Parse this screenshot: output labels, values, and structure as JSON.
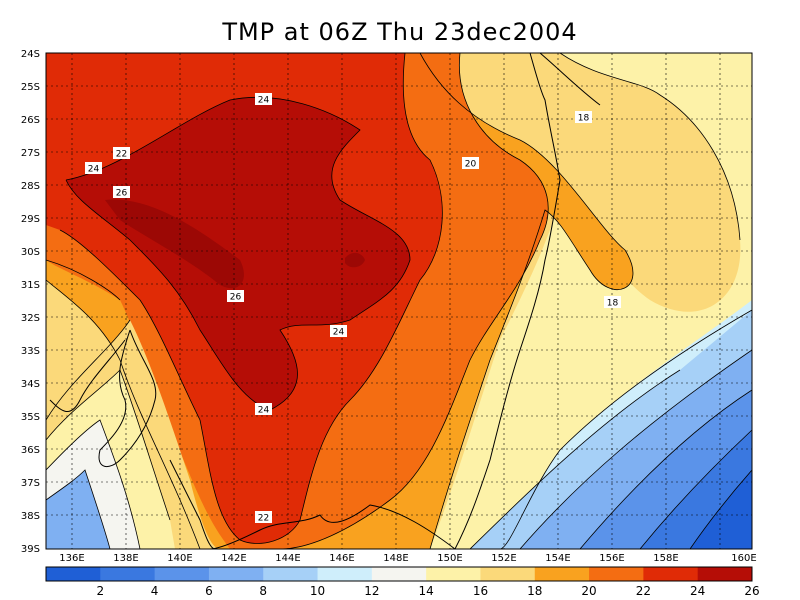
{
  "title": "TMP at 06Z Thu 23dec2004",
  "y_ticks": [
    "24S",
    "25S",
    "26S",
    "27S",
    "28S",
    "29S",
    "30S",
    "31S",
    "32S",
    "33S",
    "34S",
    "35S",
    "36S",
    "37S",
    "38S",
    "39S"
  ],
  "x_ticks": [
    "136E",
    "138E",
    "140E",
    "142E",
    "144E",
    "146E",
    "148E",
    "150E",
    "152E",
    "154E",
    "156E",
    "158E",
    "160E"
  ],
  "colorbar": {
    "labels": [
      "2",
      "4",
      "6",
      "8",
      "10",
      "12",
      "14",
      "16",
      "18",
      "20",
      "22",
      "24",
      "26"
    ],
    "colors": [
      "#1f5fd6",
      "#3a78e0",
      "#5b93ea",
      "#7fb0f2",
      "#a6d0f7",
      "#cfeefb",
      "#f5f5f0",
      "#fdf2a8",
      "#fbd97a",
      "#f9a21f",
      "#f46d12",
      "#e02b06",
      "#b50d06"
    ]
  },
  "contour_labels": [
    {
      "text": "24"
    },
    {
      "text": "22"
    },
    {
      "text": "24"
    },
    {
      "text": "26"
    },
    {
      "text": "26"
    },
    {
      "text": "24"
    },
    {
      "text": "24"
    },
    {
      "text": "22"
    },
    {
      "text": "20"
    },
    {
      "text": "18"
    },
    {
      "text": "18"
    }
  ]
}
